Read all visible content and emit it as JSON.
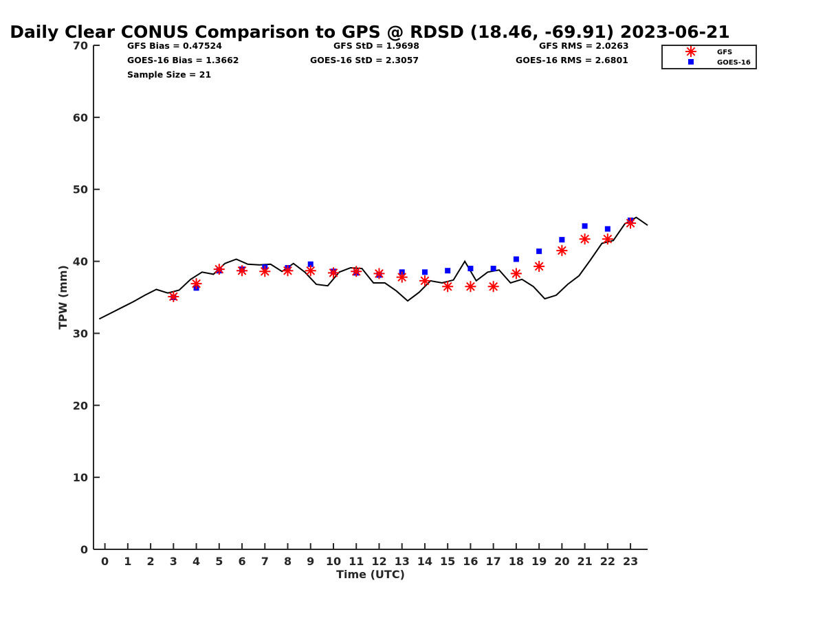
{
  "chart_data": {
    "type": "scatter",
    "title": "Daily Clear CONUS Comparison to GPS @ RDSD (18.46, -69.91) 2023-06-21",
    "xlabel": "Time (UTC)",
    "ylabel": "TPW (mm)",
    "xlim": [
      -0.5,
      23.75
    ],
    "ylim": [
      0,
      70
    ],
    "x_ticks": [
      0,
      1,
      2,
      3,
      4,
      5,
      6,
      7,
      8,
      9,
      10,
      11,
      12,
      13,
      14,
      15,
      16,
      17,
      18,
      19,
      20,
      21,
      22,
      23
    ],
    "y_ticks": [
      0,
      10,
      20,
      30,
      40,
      50,
      60,
      70
    ],
    "grid": false,
    "legend_position": "top-right, outside plot",
    "stats": [
      "GFS Bias = 0.47524",
      "GFS StD = 1.9698",
      "GFS RMS = 2.0263",
      "GOES-16 Bias = 1.3662",
      "GOES-16 StD = 2.3057",
      "GOES-16 RMS = 2.6801",
      "Sample Size = 21"
    ],
    "series": [
      {
        "kind": "line",
        "color": "#000000",
        "x": [
          -0.25,
          0.25,
          0.75,
          1.25,
          1.75,
          2.25,
          2.75,
          3.25,
          3.75,
          4.25,
          4.75,
          5.25,
          5.75,
          6.25,
          6.75,
          7.25,
          7.75,
          8.25,
          8.75,
          9.25,
          9.75,
          10.25,
          10.75,
          11.25,
          11.75,
          12.25,
          12.75,
          13.25,
          13.75,
          14.25,
          14.75,
          15.25,
          15.75,
          16.25,
          16.75,
          17.25,
          17.75,
          18.25,
          18.75,
          19.25,
          19.75,
          20.25,
          20.75,
          21.25,
          21.75,
          22.25,
          22.75,
          23.25,
          23.75
        ],
        "y": [
          32.0,
          32.8,
          33.6,
          34.4,
          35.3,
          36.1,
          35.6,
          36.0,
          37.5,
          38.5,
          38.2,
          39.7,
          40.3,
          39.6,
          39.5,
          39.6,
          38.6,
          39.7,
          38.5,
          36.8,
          36.6,
          38.5,
          39.1,
          39.0,
          37.0,
          37.0,
          35.9,
          34.5,
          35.7,
          37.3,
          37.0,
          37.4,
          40.0,
          37.3,
          38.5,
          38.8,
          37.0,
          37.5,
          36.5,
          34.8,
          35.3,
          36.8,
          38.0,
          40.2,
          42.5,
          42.9,
          45.2,
          46.1,
          45.0
        ]
      },
      {
        "name": "GFS",
        "kind": "scatter",
        "marker": "asterisk",
        "color": "#ff0000",
        "x": [
          3,
          4,
          5,
          6,
          7,
          8,
          9,
          10,
          11,
          12,
          13,
          14,
          15,
          16,
          17,
          18,
          19,
          20,
          21,
          22,
          23
        ],
        "y": [
          35.1,
          36.9,
          38.9,
          38.7,
          38.6,
          38.7,
          38.7,
          38.4,
          38.6,
          38.3,
          37.8,
          37.3,
          36.5,
          36.5,
          36.5,
          38.3,
          39.3,
          41.5,
          43.1,
          43.1,
          45.3
        ]
      },
      {
        "name": "GOES-16",
        "kind": "scatter",
        "marker": "square",
        "color": "#0000ff",
        "x": [
          3,
          4,
          5,
          6,
          7,
          8,
          9,
          10,
          11,
          12,
          13,
          14,
          15,
          16,
          17,
          18,
          19,
          20,
          21,
          22,
          23
        ],
        "y": [
          35.0,
          36.3,
          38.7,
          38.9,
          39.2,
          39.1,
          39.6,
          38.6,
          38.4,
          38.1,
          38.5,
          38.5,
          38.7,
          39.0,
          39.0,
          40.3,
          41.4,
          43.0,
          44.9,
          44.5,
          45.7
        ]
      }
    ]
  }
}
